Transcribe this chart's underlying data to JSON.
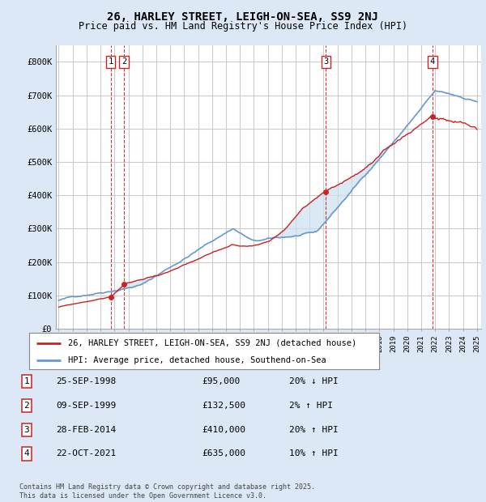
{
  "title": "26, HARLEY STREET, LEIGH-ON-SEA, SS9 2NJ",
  "subtitle": "Price paid vs. HM Land Registry's House Price Index (HPI)",
  "ylim": [
    0,
    850000
  ],
  "yticks": [
    0,
    100000,
    200000,
    300000,
    400000,
    500000,
    600000,
    700000,
    800000
  ],
  "ytick_labels": [
    "£0",
    "£100K",
    "£200K",
    "£300K",
    "£400K",
    "£500K",
    "£600K",
    "£700K",
    "£800K"
  ],
  "background_color": "#dce8f5",
  "plot_bg_color": "#ffffff",
  "grid_color": "#cccccc",
  "red_color": "#cc2222",
  "blue_color": "#6699cc",
  "fill_color": "#cce0f0",
  "transaction_dates": [
    1998.73,
    1999.69,
    2014.16,
    2021.81
  ],
  "transaction_prices": [
    95000,
    132500,
    410000,
    635000
  ],
  "transaction_labels": [
    "1",
    "2",
    "3",
    "4"
  ],
  "vline_color": "#cc2222",
  "legend_entries": [
    "26, HARLEY STREET, LEIGH-ON-SEA, SS9 2NJ (detached house)",
    "HPI: Average price, detached house, Southend-on-Sea"
  ],
  "table_data": [
    [
      "1",
      "25-SEP-1998",
      "£95,000",
      "20% ↓ HPI"
    ],
    [
      "2",
      "09-SEP-1999",
      "£132,500",
      "2% ↑ HPI"
    ],
    [
      "3",
      "28-FEB-2014",
      "£410,000",
      "20% ↑ HPI"
    ],
    [
      "4",
      "22-OCT-2021",
      "£635,000",
      "10% ↑ HPI"
    ]
  ],
  "footer": "Contains HM Land Registry data © Crown copyright and database right 2025.\nThis data is licensed under the Open Government Licence v3.0."
}
